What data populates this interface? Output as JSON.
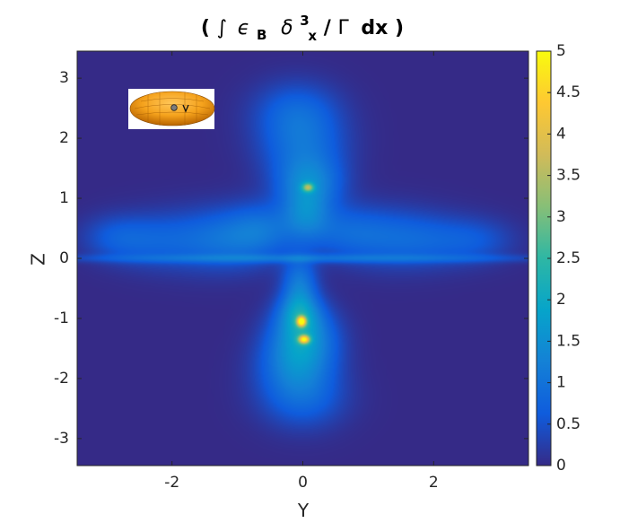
{
  "chart_data": {
    "type": "heatmap",
    "title_parts": {
      "open": "(",
      "integral": "∫",
      "epsilon": "ϵ",
      "epsilon_sub": "B",
      "delta": "δ",
      "delta_sup": "3",
      "delta_sub": "x",
      "slash": "/",
      "gamma": "Γ",
      "dx": "dx",
      "close": ")"
    },
    "xlabel": "Y",
    "ylabel": "Z",
    "xlim": [
      -3.45,
      3.45
    ],
    "ylim": [
      -3.45,
      3.45
    ],
    "x_ticks": [
      -2,
      0,
      2
    ],
    "x_tick_labels": [
      "-2",
      "0",
      "2"
    ],
    "y_ticks": [
      3,
      2,
      1,
      0,
      -1,
      -2,
      -3
    ],
    "y_tick_labels": [
      "3",
      "2",
      "1",
      "0",
      "-1",
      "-2",
      "-3"
    ],
    "colorbar": {
      "min": 0,
      "max": 5,
      "ticks": [
        5,
        4.5,
        4,
        3.5,
        3,
        2.5,
        2,
        1.5,
        1,
        0.5,
        0
      ],
      "tick_labels": [
        "5",
        "4.5",
        "4",
        "3.5",
        "3",
        "2.5",
        "2",
        "1.5",
        "1",
        "0.5",
        "0"
      ],
      "colormap": "parula",
      "colors": [
        "#352a87",
        "#0f5cdd",
        "#1481d6",
        "#06a4ca",
        "#2eb7a4",
        "#87bf77",
        "#d1bb59",
        "#fec832",
        "#f9fb0e"
      ]
    },
    "background_value": 0,
    "blobs": [
      {
        "y": -2.9,
        "z": 0.35,
        "sy": 0.35,
        "sz": 0.25,
        "v": 0.45
      },
      {
        "y": -2.4,
        "z": 0.3,
        "sy": 0.45,
        "sz": 0.3,
        "v": 0.45
      },
      {
        "y": -1.6,
        "z": 0.3,
        "sy": 0.6,
        "sz": 0.35,
        "v": 0.55
      },
      {
        "y": -1.0,
        "z": 0.35,
        "sy": 0.5,
        "sz": 0.35,
        "v": 0.6
      },
      {
        "y": -0.6,
        "z": 0.5,
        "sy": 0.35,
        "sz": 0.3,
        "v": 0.6
      },
      {
        "y": 0.6,
        "z": 0.45,
        "sy": 0.45,
        "sz": 0.3,
        "v": 0.6
      },
      {
        "y": 1.3,
        "z": 0.35,
        "sy": 0.55,
        "sz": 0.35,
        "v": 0.55
      },
      {
        "y": 2.0,
        "z": 0.3,
        "sy": 0.55,
        "sz": 0.3,
        "v": 0.5
      },
      {
        "y": 2.7,
        "z": 0.3,
        "sy": 0.4,
        "sz": 0.25,
        "v": 0.4
      },
      {
        "y": 0.0,
        "z": 0.0,
        "sy": 2.6,
        "sz": 0.05,
        "v": 0.7
      },
      {
        "y": -0.1,
        "z": 2.45,
        "sy": 0.45,
        "sz": 0.35,
        "v": 0.7
      },
      {
        "y": 0.0,
        "z": 1.85,
        "sy": 0.45,
        "sz": 0.4,
        "v": 0.85
      },
      {
        "y": 0.1,
        "z": 1.25,
        "sy": 0.35,
        "sz": 0.3,
        "v": 1.1
      },
      {
        "y": 0.05,
        "z": 0.75,
        "sy": 0.25,
        "sz": 0.3,
        "v": 1.0
      },
      {
        "y": -0.05,
        "z": -0.4,
        "sy": 0.18,
        "sz": 0.3,
        "v": 1.0
      },
      {
        "y": -0.05,
        "z": -0.9,
        "sy": 0.22,
        "sz": 0.25,
        "v": 1.2
      },
      {
        "y": 0.0,
        "z": -1.3,
        "sy": 0.35,
        "sz": 0.35,
        "v": 1.4
      },
      {
        "y": -0.1,
        "z": -1.8,
        "sy": 0.4,
        "sz": 0.35,
        "v": 1.0
      },
      {
        "y": 0.0,
        "z": -2.35,
        "sy": 0.45,
        "sz": 0.35,
        "v": 0.7
      },
      {
        "y": -0.02,
        "z": -1.05,
        "sy": 0.05,
        "sz": 0.06,
        "v": 3.6
      },
      {
        "y": 0.02,
        "z": -1.35,
        "sy": 0.06,
        "sz": 0.05,
        "v": 3.2
      },
      {
        "y": 0.08,
        "z": 1.18,
        "sy": 0.06,
        "sz": 0.05,
        "v": 2.0
      }
    ]
  }
}
